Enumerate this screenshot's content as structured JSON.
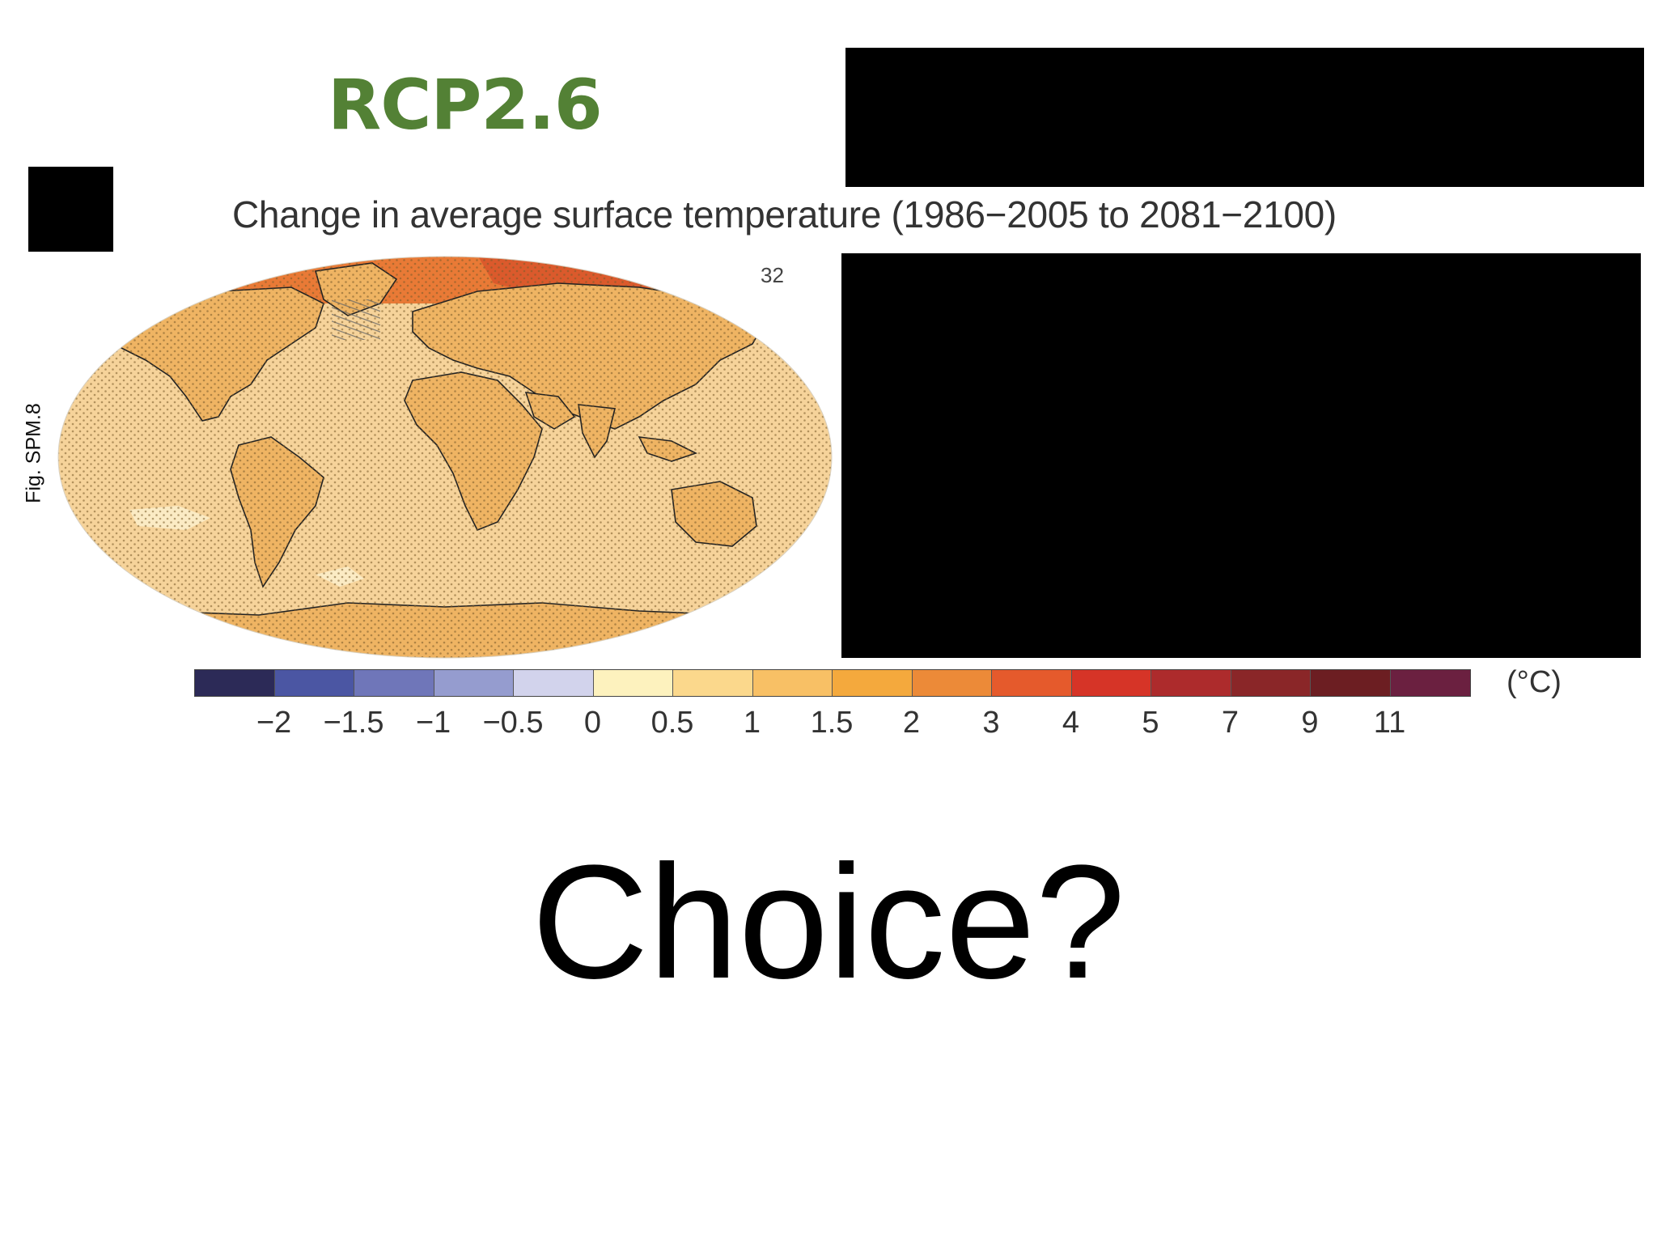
{
  "slide": {
    "scenario": "RCP2.6",
    "figure_ref": "Fig. SPM.8",
    "question": "Choice?"
  },
  "map": {
    "title": "Change in average surface temperature (1986−2005 to 2081−2100)",
    "model_count": "32",
    "unit": "(°C)",
    "colorbar": [
      {
        "color": "#2c2a57"
      },
      {
        "color": "#4b56a3"
      },
      {
        "color": "#6f76b9"
      },
      {
        "color": "#959ccf"
      },
      {
        "color": "#d2d3ec"
      },
      {
        "color": "#fdf2be"
      },
      {
        "color": "#fbd88c"
      },
      {
        "color": "#f8c065"
      },
      {
        "color": "#f4a93d"
      },
      {
        "color": "#ec8a38"
      },
      {
        "color": "#e55a2c"
      },
      {
        "color": "#d63427"
      },
      {
        "color": "#ad2b2c"
      },
      {
        "color": "#8a2628"
      },
      {
        "color": "#6c1e22"
      },
      {
        "color": "#6b2040"
      }
    ],
    "ticks": [
      "−2",
      "−1.5",
      "−1",
      "−0.5",
      "0",
      "0.5",
      "1",
      "1.5",
      "2",
      "3",
      "4",
      "5",
      "7",
      "9",
      "11"
    ],
    "fill_colors": {
      "ocean": "#f6d39a",
      "land": "#efb463",
      "arctic": "#e97a36",
      "arctic_peak": "#db5a2c",
      "cool_patch": "#fbebc4",
      "coast": "#222222",
      "stipple": "#7a5a2a"
    }
  }
}
